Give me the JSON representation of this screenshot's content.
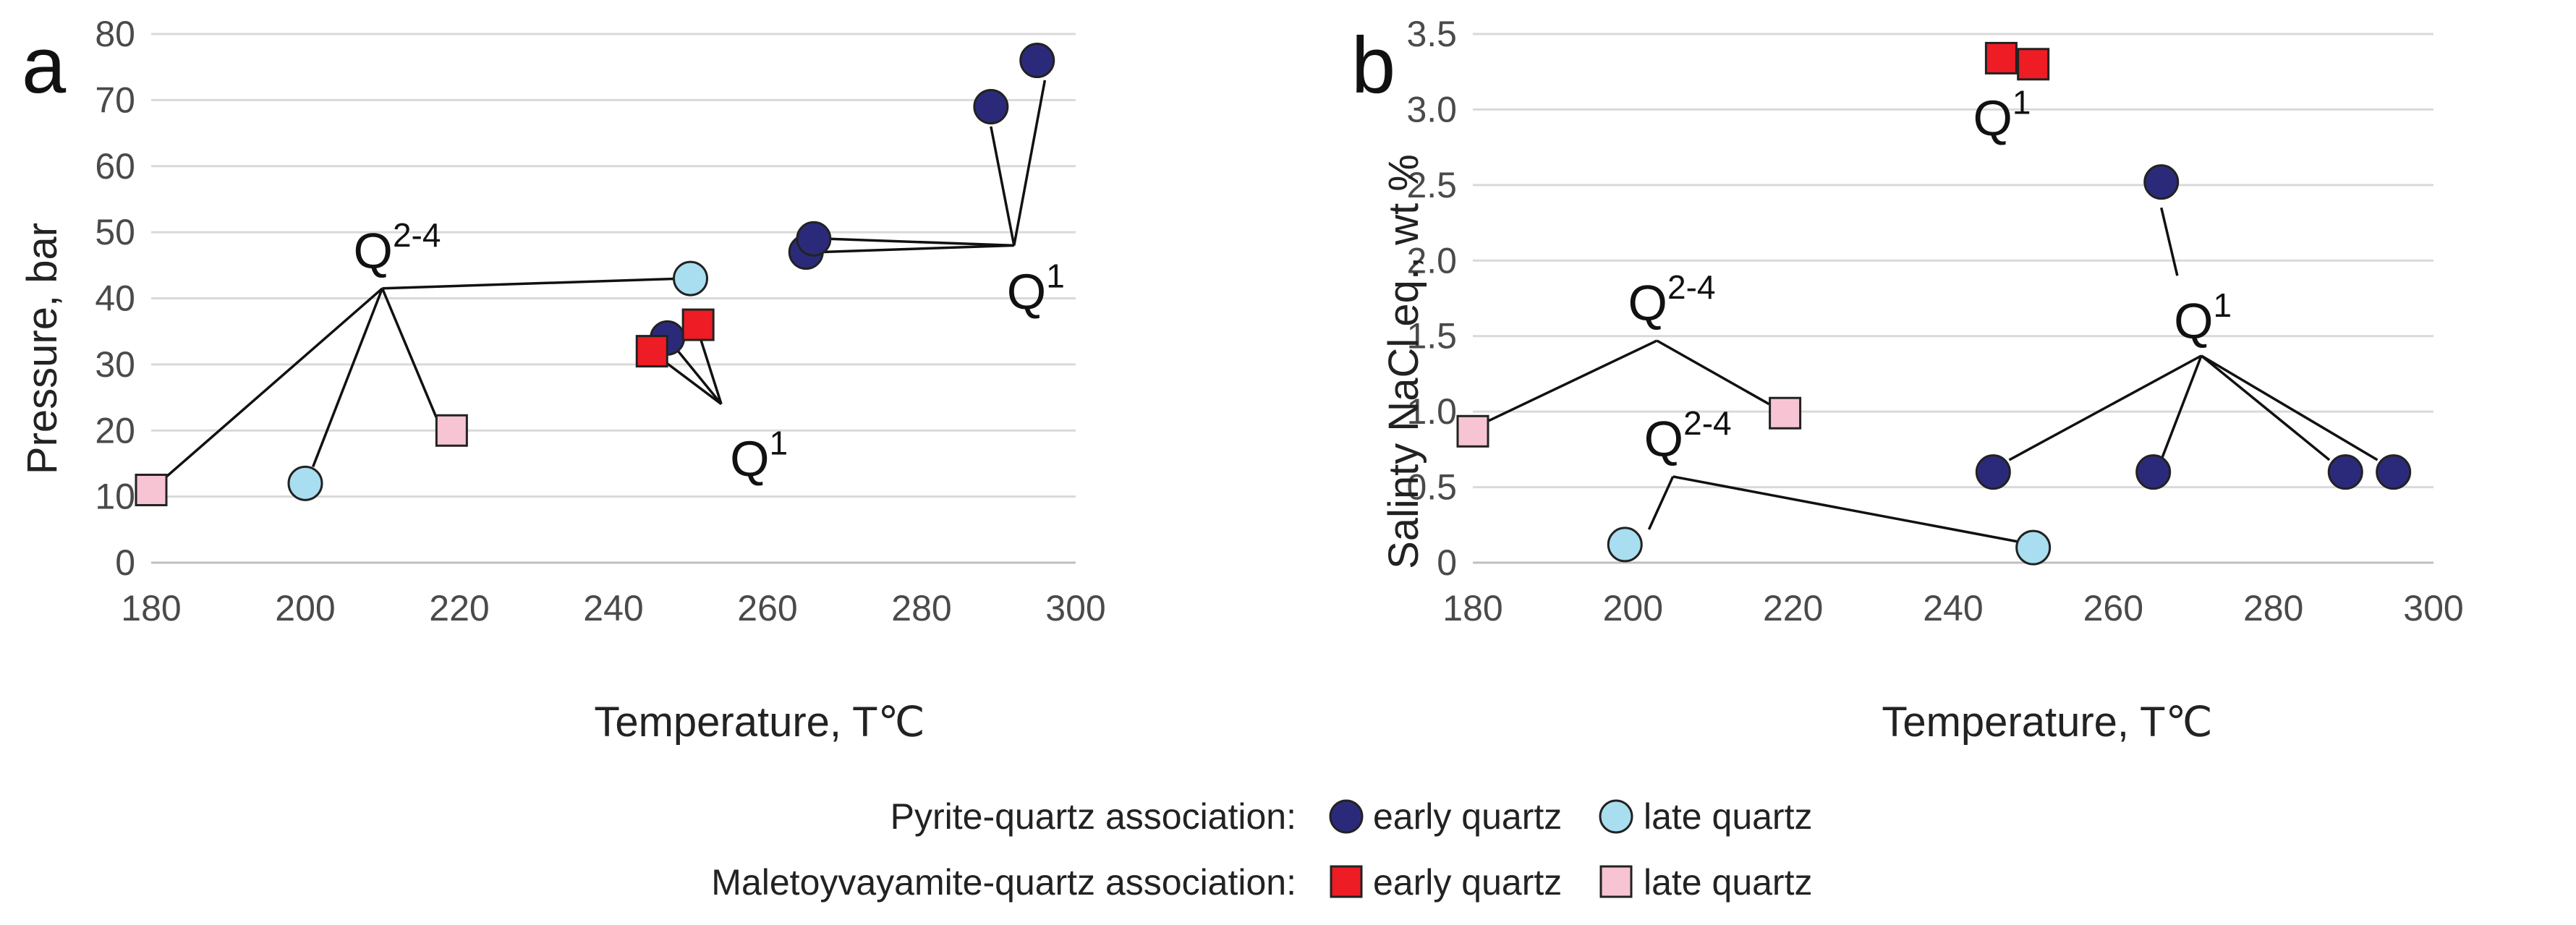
{
  "colors": {
    "early_pyrite": "#2b2a7a",
    "late_pyrite": "#a8def0",
    "early_malet": "#ee1c24",
    "late_malet": "#f7c4d4",
    "outline": "#222222"
  },
  "chart_data": [
    {
      "type": "scatter",
      "panel": "a",
      "xlabel": "Temperature, T℃",
      "ylabel": "Pressure, bar",
      "xlim": [
        180,
        300
      ],
      "ylim": [
        0,
        80
      ],
      "xticks": [
        180,
        200,
        220,
        240,
        260,
        280,
        300
      ],
      "yticks": [
        0,
        10,
        20,
        30,
        40,
        50,
        60,
        70,
        80
      ],
      "grid": "horizontal",
      "series": [
        {
          "name": "Pyrite-quartz early quartz",
          "marker": "circle",
          "color_key": "early_pyrite",
          "points": [
            [
              247,
              34
            ],
            [
              265,
              47
            ],
            [
              266,
              49
            ],
            [
              289,
              69
            ],
            [
              295,
              76
            ]
          ]
        },
        {
          "name": "Pyrite-quartz late quartz",
          "marker": "circle",
          "color_key": "late_pyrite",
          "points": [
            [
              200,
              12
            ],
            [
              250,
              43
            ]
          ]
        },
        {
          "name": "Maletoyvayamite-quartz early quartz",
          "marker": "square",
          "color_key": "early_malet",
          "points": [
            [
              245,
              32
            ],
            [
              251,
              36
            ]
          ]
        },
        {
          "name": "Maletoyvayamite-quartz late quartz",
          "marker": "square",
          "color_key": "late_malet",
          "points": [
            [
              180,
              11
            ],
            [
              219,
              20
            ]
          ]
        }
      ],
      "annotations": [
        {
          "base": "Q",
          "sup": "2-4",
          "anchor": [
            210,
            41.5
          ],
          "targets": [
            [
              180,
              11
            ],
            [
              201,
              14.5
            ],
            [
              217,
              22
            ],
            [
              249,
              43
            ]
          ]
        },
        {
          "base": "Q",
          "sup": "1",
          "anchor": [
            292,
            48
          ],
          "targets": [
            [
              267,
              47
            ],
            [
              268,
              49
            ],
            [
              289,
              66
            ],
            [
              296,
              73
            ]
          ]
        },
        {
          "base": "Q",
          "sup": "1",
          "anchor": [
            254,
            24
          ],
          "targets": [
            [
              246,
              31
            ],
            [
              247,
              34
            ],
            [
              251,
              35
            ]
          ]
        }
      ]
    },
    {
      "type": "scatter",
      "panel": "b",
      "xlabel": "Temperature, T℃",
      "ylabel": "Salinty NaCl eq., wt %",
      "xlim": [
        180,
        300
      ],
      "ylim": [
        0,
        3.5
      ],
      "xticks": [
        180,
        200,
        220,
        240,
        260,
        280,
        300
      ],
      "yticks": [
        0,
        0.5,
        1.0,
        1.5,
        2.0,
        2.5,
        3.0,
        3.5
      ],
      "ytick_labels": [
        "0",
        "0.5",
        "1.0",
        "1.5",
        "2.0",
        "2.5",
        "3.0",
        "3.5"
      ],
      "grid": "horizontal",
      "series": [
        {
          "name": "Pyrite-quartz early quartz",
          "marker": "circle",
          "color_key": "early_pyrite",
          "points": [
            [
              245,
              0.6
            ],
            [
              265,
              0.6
            ],
            [
              289,
              0.6
            ],
            [
              295,
              0.6
            ],
            [
              266,
              2.52
            ]
          ]
        },
        {
          "name": "Pyrite-quartz late quartz",
          "marker": "circle",
          "color_key": "late_pyrite",
          "points": [
            [
              199,
              0.12
            ],
            [
              250,
              0.1
            ]
          ]
        },
        {
          "name": "Maletoyvayamite-quartz early quartz",
          "marker": "square",
          "color_key": "early_malet",
          "points": [
            [
              246,
              3.34
            ],
            [
              250,
              3.3
            ]
          ]
        },
        {
          "name": "Maletoyvayamite-quartz late quartz",
          "marker": "square",
          "color_key": "late_malet",
          "points": [
            [
              180,
              0.87
            ],
            [
              219,
              0.99
            ]
          ]
        }
      ],
      "annotations": [
        {
          "base": "Q",
          "sup": "2-4",
          "anchor": [
            203,
            1.47
          ],
          "targets": [
            [
              182,
              0.94
            ],
            [
              217,
              1.05
            ]
          ]
        },
        {
          "base": "Q",
          "sup": "2-4",
          "anchor": [
            205,
            0.57
          ],
          "targets": [
            [
              202,
              0.22
            ],
            [
              248,
              0.14
            ]
          ]
        },
        {
          "base": "Q",
          "sup": "1",
          "anchor": [
            271,
            1.37
          ],
          "targets": [
            [
              247,
              0.68
            ],
            [
              266,
              0.68
            ],
            [
              287,
              0.68
            ],
            [
              293,
              0.68
            ]
          ]
        },
        {
          "base": "Q",
          "sup": "1",
          "anchor": [
            268,
            1.9
          ],
          "targets": [
            [
              266,
              2.35
            ]
          ]
        },
        {
          "base": "Q",
          "sup": "1",
          "anchor": [
            247,
            3.02
          ],
          "targets": []
        }
      ]
    }
  ],
  "panel_labels": {
    "a": "a",
    "b": "b"
  },
  "legend": {
    "rows": [
      {
        "label": "Pyrite-quartz association:",
        "early": "early quartz",
        "late": "late quartz"
      },
      {
        "label": "Maletoyvayamite-quartz association:",
        "early": "early quartz",
        "late": "late quartz"
      }
    ]
  }
}
